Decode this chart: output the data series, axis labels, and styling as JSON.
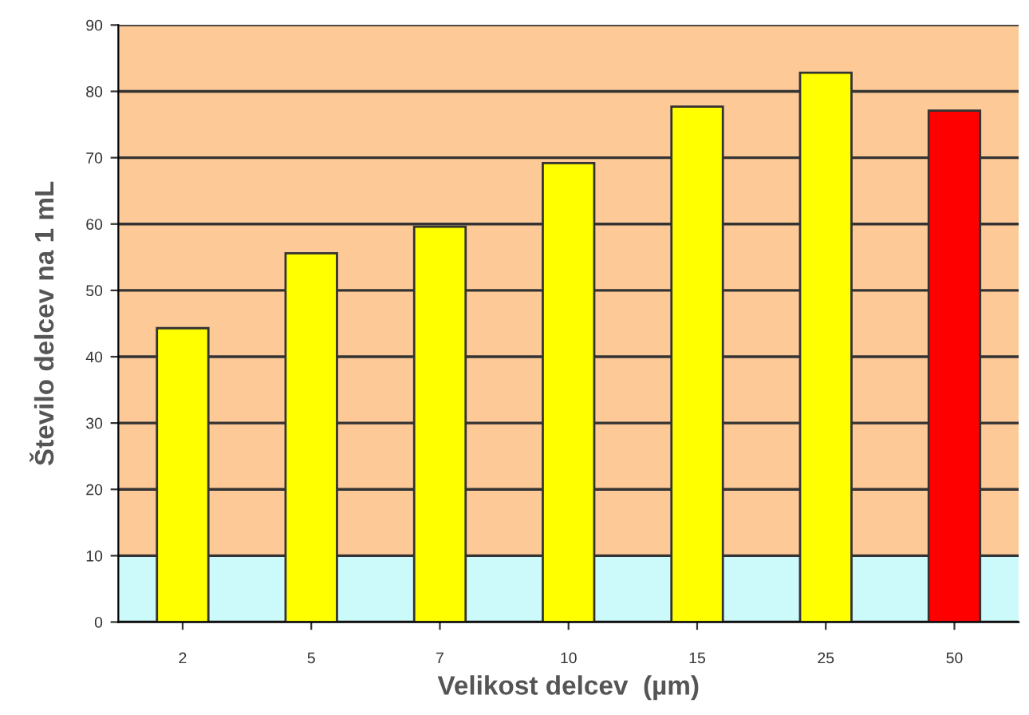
{
  "chart_data": {
    "type": "bar",
    "xlabel": "Velikost delcev  (µm)",
    "ylabel": "Število delcev na 1 mL",
    "categories": [
      "2",
      "5",
      "7",
      "10",
      "15",
      "25",
      "50"
    ],
    "values": [
      44.3,
      55.6,
      59.6,
      69.2,
      77.7,
      82.8,
      77.1
    ],
    "colors": [
      "#ffff00",
      "#ffff00",
      "#ffff00",
      "#ffff00",
      "#ffff00",
      "#ffff00",
      "#ff0000"
    ],
    "ylim": [
      0,
      90
    ],
    "yticks": [
      0,
      10,
      20,
      30,
      40,
      50,
      60,
      70,
      80,
      90
    ],
    "grid": "y",
    "bands": [
      {
        "axis": "y",
        "from": 0,
        "to": 10,
        "color": "#ccfafa"
      },
      {
        "axis": "y",
        "from": 10,
        "to": 90,
        "color": "#fdc996"
      }
    ]
  }
}
